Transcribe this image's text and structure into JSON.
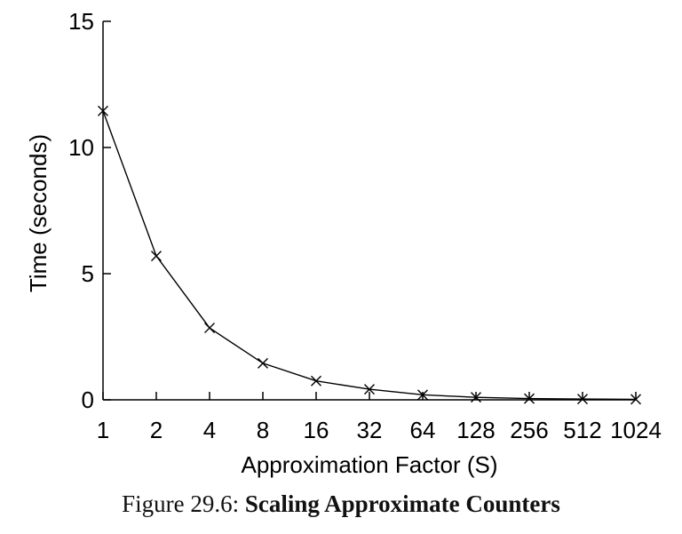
{
  "chart_data": {
    "type": "line",
    "x_categories": [
      "1",
      "2",
      "4",
      "8",
      "16",
      "32",
      "64",
      "128",
      "256",
      "512",
      "1024"
    ],
    "x": [
      1,
      2,
      4,
      8,
      16,
      32,
      64,
      128,
      256,
      512,
      1024
    ],
    "series": [
      {
        "values": [
          11.45,
          5.7,
          2.85,
          1.45,
          0.75,
          0.42,
          0.2,
          0.1,
          0.05,
          0.03,
          0.02
        ]
      }
    ],
    "xlabel": "Approximation Factor (S)",
    "ylabel": "Time (seconds)",
    "ylim": [
      0,
      15
    ],
    "yticks": [
      0,
      5,
      10,
      15
    ],
    "grid": false,
    "legend": "none",
    "marker": "x",
    "line_color": "#000000"
  },
  "caption": {
    "prefix": "Figure 29.6:",
    "title": "Scaling Approximate Counters"
  }
}
